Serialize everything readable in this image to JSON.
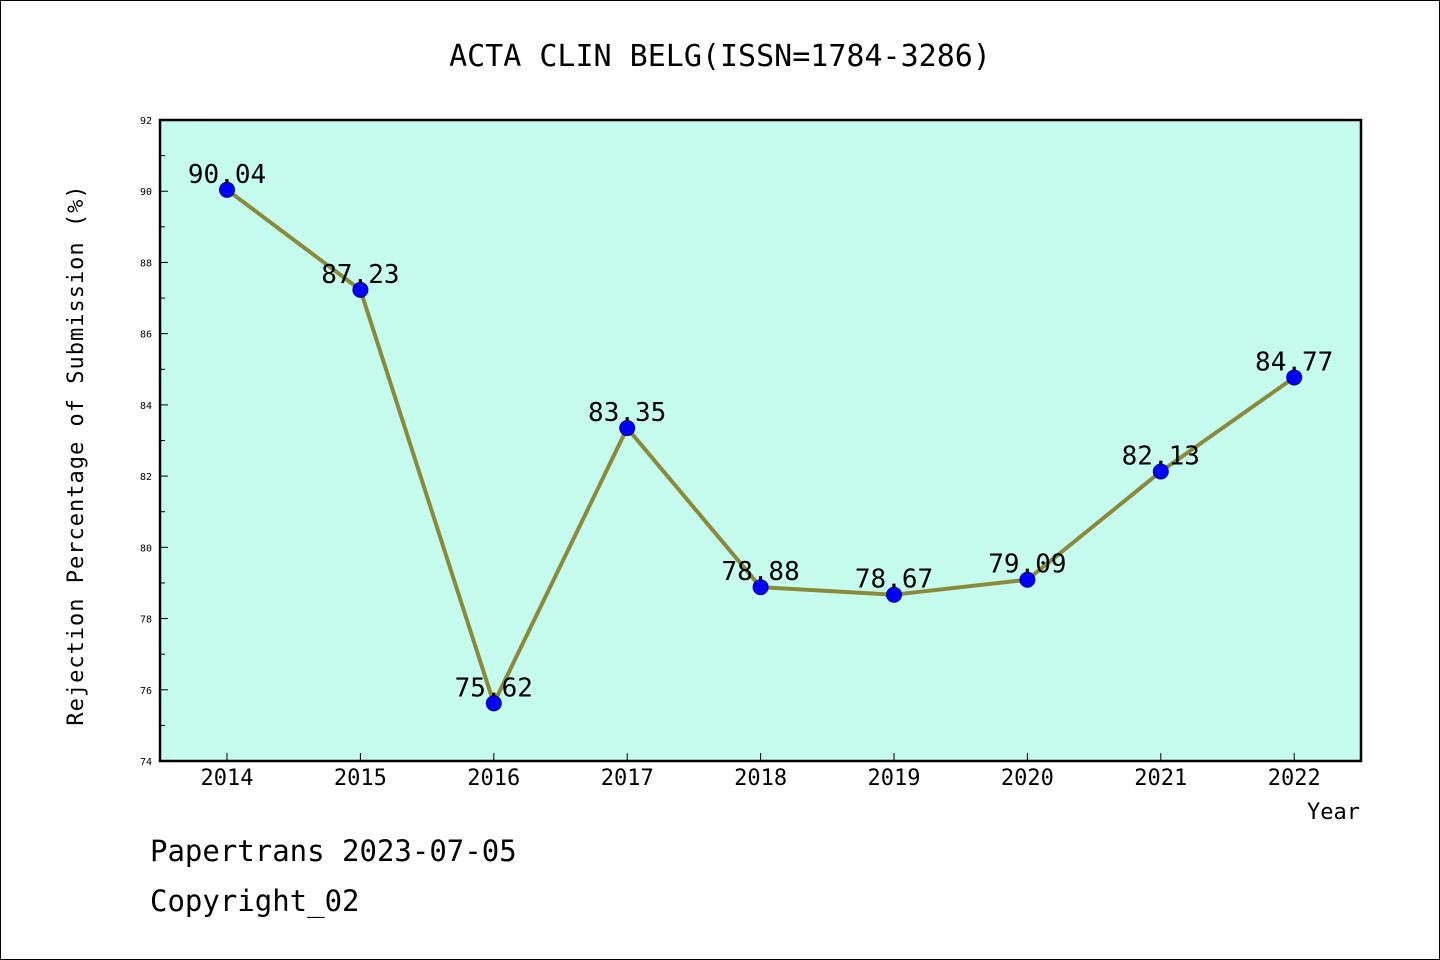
{
  "colors": {
    "plot_background": "#c6fcee",
    "line": "#8b8a3a",
    "marker": "#0000ff",
    "text": "#000000"
  },
  "footer": {
    "line1": "Papertrans 2023-07-05",
    "line2": "Copyright_02"
  },
  "chart_data": {
    "type": "line",
    "title": "ACTA CLIN BELG(ISSN=1784-3286)",
    "xlabel": "Year",
    "ylabel": "Rejection Percentage of Submission (%)",
    "categories": [
      "2014",
      "2015",
      "2016",
      "2017",
      "2018",
      "2019",
      "2020",
      "2021",
      "2022"
    ],
    "series": [
      {
        "values": [
          90.04,
          87.23,
          75.62,
          83.35,
          78.88,
          78.67,
          79.09,
          82.13,
          84.77
        ],
        "labels": [
          "90.04",
          "87.23",
          "75.62",
          "83.35",
          "78.88",
          "78.67",
          "79.09",
          "82.13",
          "84.77"
        ]
      }
    ],
    "ylim": [
      74,
      92
    ],
    "yticks": [
      "74",
      "76",
      "78",
      "80",
      "82",
      "84",
      "86",
      "88",
      "90",
      "92"
    ],
    "grid": false,
    "legend": "none"
  }
}
